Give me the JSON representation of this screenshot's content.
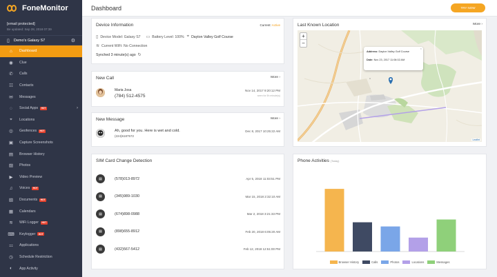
{
  "app": {
    "name": "FoneMonitor"
  },
  "account": {
    "email": "[email protected]",
    "updated": "Be updated: Sep 28, 2018 07:39"
  },
  "device": {
    "name": "Demo's Galaxy S7"
  },
  "sidebar": {
    "items": [
      {
        "label": "Dashboard",
        "icon": "dashboard-icon",
        "glyph": "⌂",
        "active": true
      },
      {
        "label": "Clue",
        "icon": "eye-icon",
        "glyph": "◉"
      },
      {
        "label": "Calls",
        "icon": "phone-icon",
        "glyph": "✆"
      },
      {
        "label": "Contacts",
        "icon": "contacts-icon",
        "glyph": "☷"
      },
      {
        "label": "Messages",
        "icon": "message-icon",
        "glyph": "✉"
      },
      {
        "label": "Social Apps",
        "icon": "chat-icon",
        "glyph": "◌",
        "badge": "HOT",
        "chevron": true
      },
      {
        "label": "Locations",
        "icon": "location-pin-icon",
        "glyph": "⌖"
      },
      {
        "label": "Geofences",
        "icon": "geofence-icon",
        "glyph": "◎",
        "badge": "HOT"
      },
      {
        "label": "Capture Screenshots",
        "icon": "screenshot-icon",
        "glyph": "▣"
      },
      {
        "label": "Browser History",
        "icon": "browser-icon",
        "glyph": "▤"
      },
      {
        "label": "Photos",
        "icon": "photo-icon",
        "glyph": "▨"
      },
      {
        "label": "Video Preview",
        "icon": "video-icon",
        "glyph": "▶"
      },
      {
        "label": "Voices",
        "icon": "voice-icon",
        "glyph": "♫",
        "badge": "HOT"
      },
      {
        "label": "Documents",
        "icon": "document-icon",
        "glyph": "▧",
        "badge": "HOT"
      },
      {
        "label": "Calendars",
        "icon": "calendar-icon",
        "glyph": "▦"
      },
      {
        "label": "WiFi Logger",
        "icon": "wifi-icon",
        "glyph": "≋",
        "badge": "HOT"
      },
      {
        "label": "Keylogger",
        "icon": "keyboard-icon",
        "glyph": "⌨",
        "badge": "HOT"
      },
      {
        "label": "Applications",
        "icon": "apps-icon",
        "glyph": "⚏"
      },
      {
        "label": "Schedule Restriction",
        "icon": "schedule-icon",
        "glyph": "◷"
      },
      {
        "label": "App Activity",
        "icon": "activity-icon",
        "glyph": "◐"
      }
    ]
  },
  "header": {
    "title": "Dashboard",
    "try_label": "TRY NOW"
  },
  "device_info": {
    "title": "Device Information",
    "status_label": "Current:",
    "status_value": "Active",
    "model": "Device Model: Galaxy S7",
    "battery": "Battery Level: 100%",
    "location": "Dayton Valley Golf Course",
    "wifi": "Current WiFi: No Connection",
    "synched": "Synched 3 minute(s) ago"
  },
  "new_call": {
    "title": "New Call",
    "more": "More",
    "name": "Maria Josa",
    "phone": "(784) 512-4575",
    "date": "Nov 14, 2017 9:20:12 PM",
    "note": "seen for 5h minute(s)"
  },
  "new_message": {
    "title": "New Message",
    "more": "More",
    "text": "Ah, good for you. Here is wet and cold.",
    "phone": "(224)6187572",
    "date": "Dec 8, 2017 10:25:22 AM"
  },
  "location": {
    "title": "Last Known Location",
    "more": "More",
    "zoom_in": "+",
    "zoom_out": "−",
    "popup_address_label": "Address:",
    "popup_address": "Dayton Valley Golf Course",
    "popup_date_label": "Date:",
    "popup_date": "Nov 23, 2017 11:06:02 AM",
    "attribution": "Leaflet"
  },
  "sim": {
    "title": "SIM Card Change Detection",
    "rows": [
      {
        "number": "(578)013-8972",
        "date": "Apr 5, 2018 11:03:51 PM"
      },
      {
        "number": "(345)989-1030",
        "date": "Mar 15, 2018 2:32:10 AM"
      },
      {
        "number": "(674)898-0988",
        "date": "Mar 2, 2018 3:21:33 PM"
      },
      {
        "number": "(898)655-8912",
        "date": "Feb 20, 2018 6:05:20 AM"
      },
      {
        "number": "(432)567-5412",
        "date": "Feb 12, 2018 12:51:00 PM"
      }
    ]
  },
  "activity": {
    "title": "Phone Activities",
    "subtitle": "(Today)"
  },
  "chart_data": {
    "type": "bar",
    "categories": [
      "Browser History",
      "Calls",
      "Photos",
      "Locations",
      "Messages"
    ],
    "values": [
      90,
      42,
      36,
      20,
      46
    ],
    "colors": [
      "#f5b54e",
      "#3f4a63",
      "#7aa6e8",
      "#b3a0e8",
      "#8fd07a"
    ],
    "ylim": [
      0,
      100
    ],
    "legend_position": "bottom",
    "grid": false
  }
}
